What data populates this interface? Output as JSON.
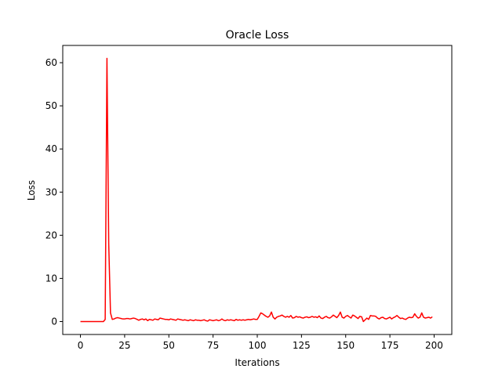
{
  "chart_data": {
    "type": "line",
    "title": "Oracle Loss",
    "xlabel": "Iterations",
    "ylabel": "Loss",
    "xlim": [
      -10,
      210
    ],
    "ylim": [
      -3,
      64
    ],
    "xticks": [
      0,
      25,
      50,
      75,
      100,
      125,
      150,
      175,
      200
    ],
    "yticks": [
      0,
      10,
      20,
      30,
      40,
      50,
      60
    ],
    "grid": false,
    "series": [
      {
        "color": "#ff0000",
        "x": [
          0,
          1,
          2,
          3,
          4,
          5,
          6,
          7,
          8,
          9,
          10,
          11,
          12,
          13,
          14,
          15,
          16,
          17,
          18,
          19,
          20,
          21,
          22,
          23,
          24,
          25,
          26,
          27,
          28,
          29,
          30,
          31,
          32,
          33,
          34,
          35,
          36,
          37,
          38,
          39,
          40,
          41,
          42,
          43,
          44,
          45,
          46,
          47,
          48,
          49,
          50,
          51,
          52,
          53,
          54,
          55,
          56,
          57,
          58,
          59,
          60,
          61,
          62,
          63,
          64,
          65,
          66,
          67,
          68,
          69,
          70,
          71,
          72,
          73,
          74,
          75,
          76,
          77,
          78,
          79,
          80,
          81,
          82,
          83,
          84,
          85,
          86,
          87,
          88,
          89,
          90,
          91,
          92,
          93,
          94,
          95,
          96,
          97,
          98,
          99,
          100,
          101,
          102,
          103,
          104,
          105,
          106,
          107,
          108,
          109,
          110,
          111,
          112,
          113,
          114,
          115,
          116,
          117,
          118,
          119,
          120,
          121,
          122,
          123,
          124,
          125,
          126,
          127,
          128,
          129,
          130,
          131,
          132,
          133,
          134,
          135,
          136,
          137,
          138,
          139,
          140,
          141,
          142,
          143,
          144,
          145,
          146,
          147,
          148,
          149,
          150,
          151,
          152,
          153,
          154,
          155,
          156,
          157,
          158,
          159,
          160,
          161,
          162,
          163,
          164,
          165,
          166,
          167,
          168,
          169,
          170,
          171,
          172,
          173,
          174,
          175,
          176,
          177,
          178,
          179,
          180,
          181,
          182,
          183,
          184,
          185,
          186,
          187,
          188,
          189,
          190,
          191,
          192,
          193,
          194,
          195,
          196,
          197,
          198,
          199
        ],
        "y": [
          0,
          0,
          0,
          0,
          0,
          0,
          0,
          0,
          0,
          0,
          0,
          0,
          0,
          0,
          0.5,
          61,
          18,
          2,
          0.5,
          0.6,
          0.8,
          0.9,
          0.8,
          0.7,
          0.6,
          0.6,
          0.7,
          0.7,
          0.6,
          0.7,
          0.8,
          0.7,
          0.5,
          0.3,
          0.5,
          0.6,
          0.4,
          0.6,
          0.2,
          0.5,
          0.4,
          0.3,
          0.6,
          0.5,
          0.4,
          0.8,
          0.7,
          0.6,
          0.5,
          0.5,
          0.4,
          0.6,
          0.5,
          0.4,
          0.3,
          0.6,
          0.5,
          0.4,
          0.3,
          0.4,
          0.3,
          0.2,
          0.4,
          0.3,
          0.2,
          0.4,
          0.3,
          0.3,
          0.2,
          0.3,
          0.4,
          0.2,
          0.1,
          0.4,
          0.3,
          0.2,
          0.3,
          0.4,
          0.2,
          0.3,
          0.6,
          0.3,
          0.2,
          0.4,
          0.3,
          0.4,
          0.3,
          0.2,
          0.5,
          0.3,
          0.4,
          0.3,
          0.4,
          0.3,
          0.4,
          0.5,
          0.4,
          0.5,
          0.6,
          0.5,
          0.5,
          1.2,
          2.0,
          1.8,
          1.5,
          1.2,
          1.0,
          1.3,
          2.2,
          1.0,
          0.6,
          1.0,
          1.2,
          1.3,
          1.5,
          1.2,
          1.0,
          1.2,
          1.0,
          1.4,
          0.8,
          0.9,
          1.2,
          1.0,
          1.1,
          0.9,
          0.8,
          1.0,
          1.1,
          0.9,
          1.0,
          1.2,
          1.0,
          1.1,
          0.9,
          1.3,
          0.8,
          0.7,
          1.0,
          1.2,
          0.9,
          0.8,
          1.1,
          1.5,
          1.2,
          0.9,
          1.4,
          2.2,
          1.0,
          0.8,
          1.2,
          1.4,
          1.1,
          0.8,
          1.5,
          1.3,
          1.0,
          0.7,
          1.2,
          1.1,
          0.0,
          0.4,
          0.8,
          0.5,
          1.4,
          1.3,
          1.3,
          1.2,
          0.8,
          0.6,
          0.9,
          1.0,
          0.7,
          0.6,
          0.8,
          1.0,
          0.6,
          0.9,
          1.1,
          1.4,
          1.0,
          0.7,
          0.8,
          0.6,
          0.5,
          0.8,
          1.0,
          0.9,
          1.0,
          1.8,
          1.2,
          0.8,
          1.0,
          2.0,
          1.0,
          0.8,
          0.9,
          1.0,
          0.8,
          1.1
        ]
      }
    ]
  }
}
